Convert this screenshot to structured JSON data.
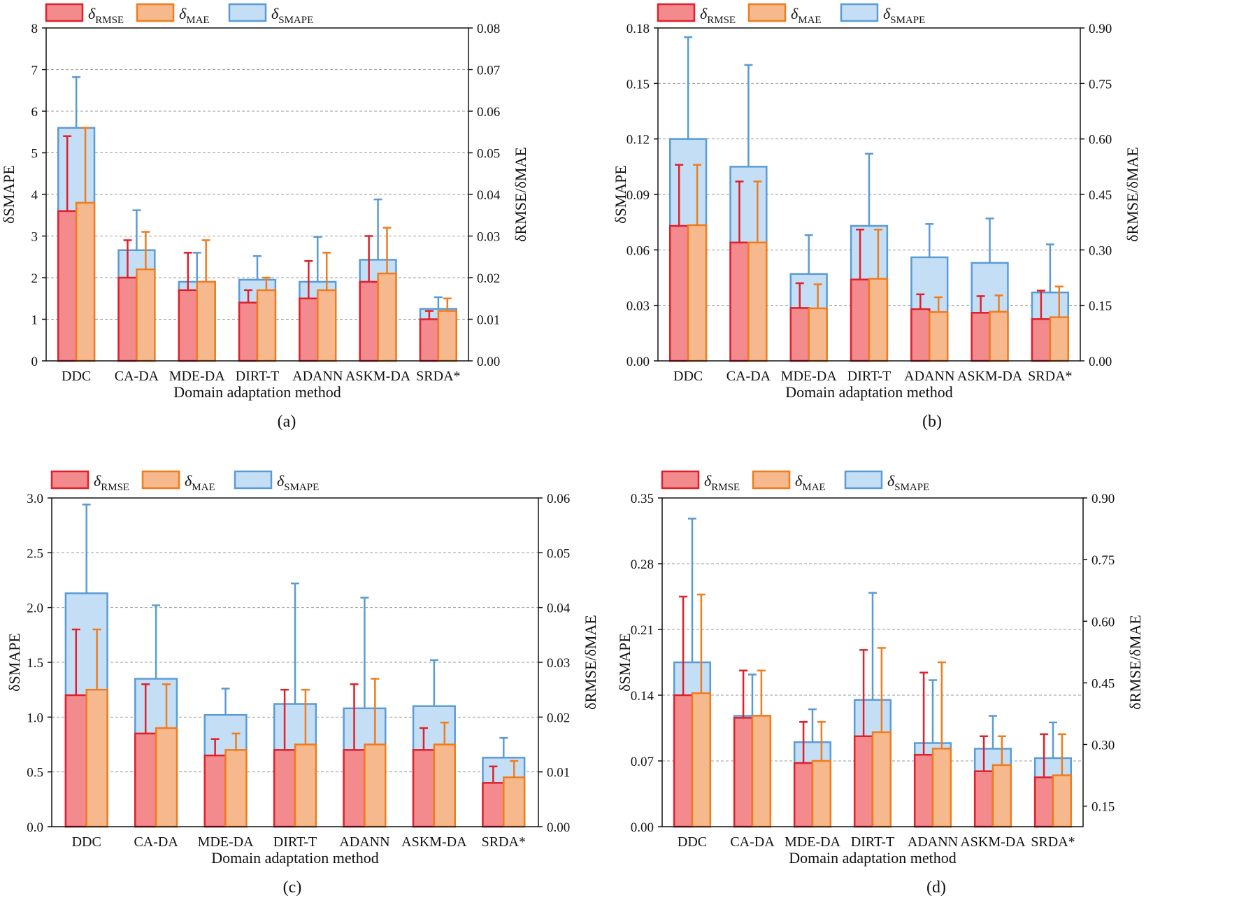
{
  "legend": {
    "sym": "δ",
    "rmse": "RMSE",
    "mae": "MAE",
    "smape": "SMAPE"
  },
  "colors": {
    "rmse_fill": "#f28a8e",
    "rmse_stroke": "#e0202a",
    "mae_fill": "#f6b98d",
    "mae_stroke": "#f07c1c",
    "smape_fill": "#c4dff5",
    "smape_stroke": "#5b9bd5"
  },
  "chart_data": [
    {
      "type": "bar",
      "panel_label": "(a)",
      "xlabel": "Domain adaptation method",
      "ylabel_left": "δSMAPE",
      "ylabel_right": "δRMSE/δMAE",
      "categories": [
        "DDC",
        "CA-DA",
        "MDE-DA",
        "DIRT-T",
        "ADANN",
        "ASKM-DA",
        "SRDA*"
      ],
      "left_axis": {
        "min": 0,
        "max": 8,
        "ticks": [
          "0",
          "1",
          "2",
          "3",
          "4",
          "5",
          "6",
          "7",
          "8"
        ]
      },
      "right_axis": {
        "min": 0,
        "max": 0.08,
        "ticks": [
          "0.00",
          "0.01",
          "0.02",
          "0.03",
          "0.04",
          "0.05",
          "0.06",
          "0.07",
          "0.08"
        ]
      },
      "series": [
        {
          "name": "δSMAPE",
          "axis": "left",
          "values": [
            5.6,
            2.66,
            1.9,
            1.95,
            1.9,
            2.43,
            1.25
          ],
          "errors": [
            1.22,
            0.96,
            0.7,
            0.57,
            1.08,
            1.45,
            0.28
          ]
        },
        {
          "name": "δRMSE",
          "axis": "right",
          "values": [
            0.036,
            0.02,
            0.017,
            0.014,
            0.015,
            0.019,
            0.01
          ],
          "errors": [
            0.018,
            0.009,
            0.009,
            0.003,
            0.009,
            0.011,
            0.002
          ]
        },
        {
          "name": "δMAE",
          "axis": "right",
          "values": [
            0.038,
            0.022,
            0.019,
            0.017,
            0.017,
            0.021,
            0.012
          ],
          "errors": [
            0.018,
            0.009,
            0.01,
            0.003,
            0.009,
            0.011,
            0.003
          ]
        }
      ]
    },
    {
      "type": "bar",
      "panel_label": "(b)",
      "xlabel": "Domain adaptation method",
      "ylabel_left": "δSMAPE",
      "ylabel_right": "δRMSE/δMAE",
      "categories": [
        "DDC",
        "CA-DA",
        "MDE-DA",
        "DIRT-T",
        "ADANN",
        "ASKM-DA",
        "SRDA*"
      ],
      "left_axis": {
        "min": 0,
        "max": 0.18,
        "ticks": [
          "0.00",
          "0.03",
          "0.06",
          "0.09",
          "0.12",
          "0.15",
          "0.18"
        ]
      },
      "right_axis": {
        "min": 0,
        "max": 0.9,
        "ticks": [
          "0.00",
          "0.15",
          "0.30",
          "0.45",
          "0.60",
          "0.75",
          "0.90"
        ]
      },
      "series": [
        {
          "name": "δSMAPE",
          "axis": "left",
          "values": [
            0.12,
            0.105,
            0.047,
            0.073,
            0.056,
            0.053,
            0.037
          ],
          "errors": [
            0.055,
            0.055,
            0.021,
            0.039,
            0.018,
            0.024,
            0.026
          ]
        },
        {
          "name": "δRMSE",
          "axis": "right",
          "values": [
            0.365,
            0.32,
            0.143,
            0.22,
            0.14,
            0.13,
            0.113
          ],
          "errors": [
            0.165,
            0.165,
            0.067,
            0.135,
            0.04,
            0.045,
            0.077
          ]
        },
        {
          "name": "δMAE",
          "axis": "right",
          "values": [
            0.367,
            0.32,
            0.142,
            0.222,
            0.132,
            0.133,
            0.118
          ],
          "errors": [
            0.163,
            0.165,
            0.065,
            0.133,
            0.04,
            0.044,
            0.083
          ]
        }
      ]
    },
    {
      "type": "bar",
      "panel_label": "(c)",
      "xlabel": "Domain adaptation method",
      "ylabel_left": "δSMAPE",
      "ylabel_right": "δRMSE/δMAE",
      "categories": [
        "DDC",
        "CA-DA",
        "MDE-DA",
        "DIRT-T",
        "ADANN",
        "ASKM-DA",
        "SRDA*"
      ],
      "left_axis": {
        "min": 0,
        "max": 3.0,
        "ticks": [
          "0.0",
          "0.5",
          "1.0",
          "1.5",
          "2.0",
          "2.5",
          "3.0"
        ]
      },
      "right_axis": {
        "min": 0,
        "max": 0.06,
        "ticks": [
          "0.00",
          "0.01",
          "0.02",
          "0.03",
          "0.04",
          "0.05",
          "0.06"
        ]
      },
      "series": [
        {
          "name": "δSMAPE",
          "axis": "left",
          "values": [
            2.13,
            1.35,
            1.02,
            1.12,
            1.08,
            1.1,
            0.63
          ],
          "errors": [
            0.81,
            0.67,
            0.24,
            1.1,
            1.01,
            0.42,
            0.18
          ]
        },
        {
          "name": "δRMSE",
          "axis": "right",
          "values": [
            0.024,
            0.017,
            0.013,
            0.014,
            0.014,
            0.014,
            0.008
          ],
          "errors": [
            0.012,
            0.009,
            0.003,
            0.011,
            0.012,
            0.004,
            0.003
          ]
        },
        {
          "name": "δMAE",
          "axis": "right",
          "values": [
            0.025,
            0.018,
            0.014,
            0.015,
            0.015,
            0.015,
            0.009
          ],
          "errors": [
            0.011,
            0.008,
            0.003,
            0.01,
            0.012,
            0.004,
            0.003
          ]
        }
      ]
    },
    {
      "type": "bar",
      "panel_label": "(d)",
      "xlabel": "Domain adaptation method",
      "ylabel_left": "δSMAPE",
      "ylabel_right": "δRMSE/δMAE",
      "categories": [
        "DDC",
        "CA-DA",
        "MDE-DA",
        "DIRT-T",
        "ADANN",
        "ASKM-DA",
        "SRDA*"
      ],
      "left_axis": {
        "min": 0,
        "max": 0.35,
        "ticks": [
          "0.00",
          "0.07",
          "0.14",
          "0.21",
          "0.28",
          "0.35"
        ]
      },
      "right_axis": {
        "min": 0.1,
        "max": 0.9,
        "ticks": [
          "0.15",
          "0.30",
          "0.45",
          "0.60",
          "0.75",
          "0.90"
        ]
      },
      "series": [
        {
          "name": "δSMAPE",
          "axis": "left",
          "values": [
            0.175,
            0.118,
            0.09,
            0.135,
            0.089,
            0.083,
            0.073
          ],
          "errors": [
            0.153,
            0.044,
            0.035,
            0.114,
            0.067,
            0.035,
            0.038
          ]
        },
        {
          "name": "δRMSE",
          "axis": "right",
          "values": [
            0.42,
            0.365,
            0.255,
            0.32,
            0.275,
            0.235,
            0.22
          ],
          "errors": [
            0.24,
            0.115,
            0.1,
            0.21,
            0.2,
            0.085,
            0.105
          ]
        },
        {
          "name": "δMAE",
          "axis": "right",
          "values": [
            0.425,
            0.37,
            0.26,
            0.33,
            0.29,
            0.25,
            0.225
          ],
          "errors": [
            0.24,
            0.11,
            0.095,
            0.205,
            0.21,
            0.07,
            0.1
          ]
        }
      ]
    }
  ]
}
